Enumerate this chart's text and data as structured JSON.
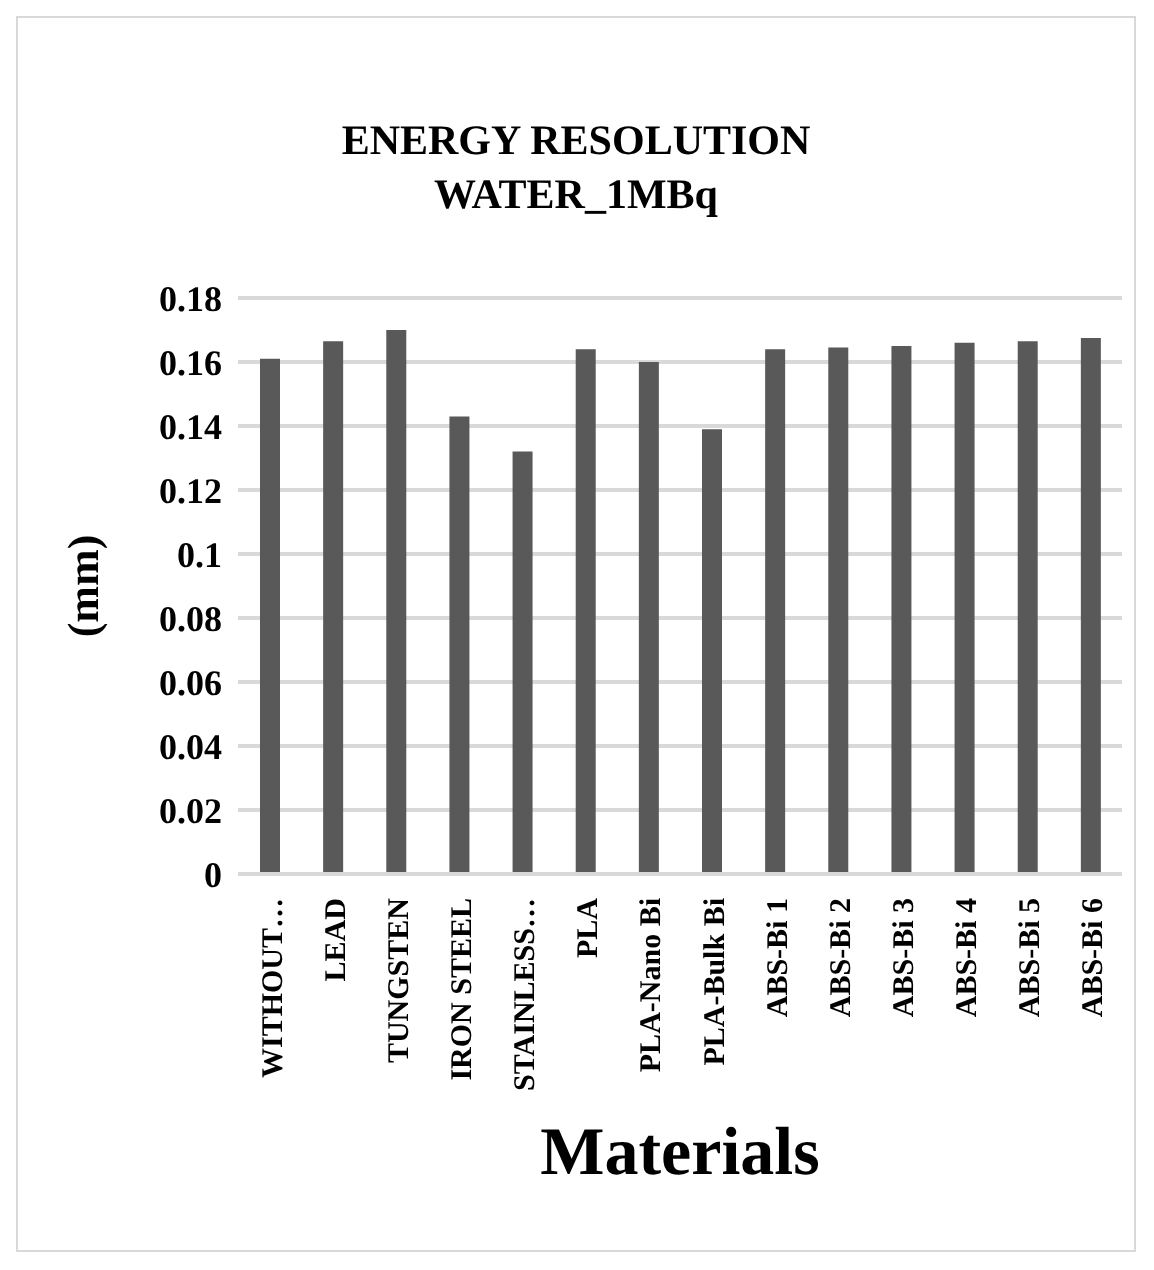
{
  "chart_data": {
    "type": "bar",
    "title": "ENERGY RESOLUTION\nWATER_1MBq",
    "xlabel": "Materials",
    "ylabel": "(mm)",
    "categories": [
      "WITHOUT…",
      "LEAD",
      "TUNGSTEN",
      "IRON STEEL",
      "STAINLESS…",
      "PLA",
      "PLA-Nano Bi",
      "PLA-Bulk Bi",
      "ABS-Bi 1",
      "ABS-Bi 2",
      "ABS-Bi 3",
      "ABS-Bi 4",
      "ABS-Bi 5",
      "ABS-Bi 6"
    ],
    "values": [
      0.161,
      0.1665,
      0.17,
      0.143,
      0.132,
      0.164,
      0.16,
      0.139,
      0.164,
      0.1645,
      0.165,
      0.166,
      0.1665,
      0.1675
    ],
    "color": "#595959",
    "ylim": [
      0,
      0.18
    ],
    "yticks": [
      0,
      0.02,
      0.04,
      0.06,
      0.08,
      0.1,
      0.12,
      0.14,
      0.16,
      0.18
    ],
    "grid": "y"
  }
}
